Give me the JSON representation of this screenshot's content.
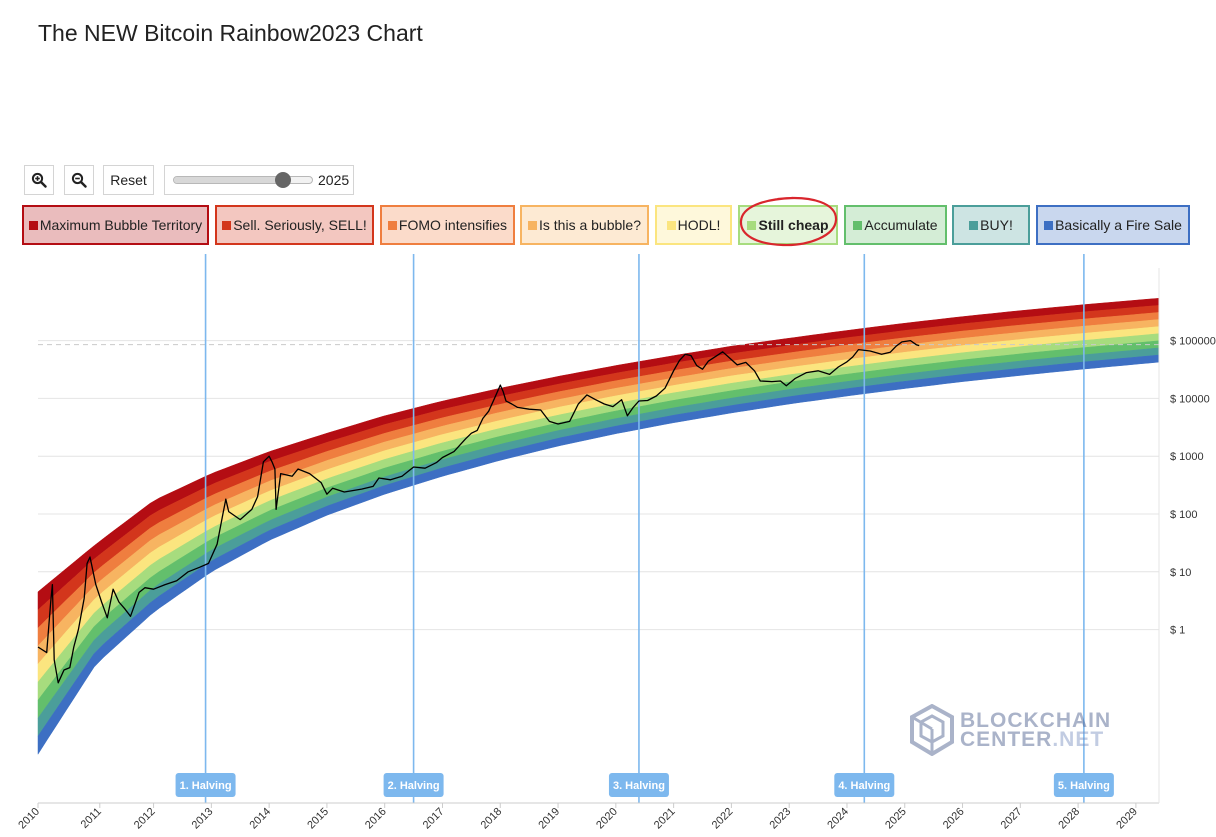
{
  "title": "The NEW Bitcoin Rainbow2023 Chart",
  "toolbar": {
    "zoom_in_icon": "zoom-in-icon",
    "zoom_out_icon": "zoom-out-icon",
    "reset_label": "Reset",
    "slider_value": "2025",
    "slider_min": 2010,
    "slider_max": 2029
  },
  "legend": [
    {
      "label": "Maximum Bubble Territory",
      "color": "#b40d13"
    },
    {
      "label": "Sell. Seriously, SELL!",
      "color": "#d3361c"
    },
    {
      "label": "FOMO intensifies",
      "color": "#ef7e3f"
    },
    {
      "label": "Is this a bubble?",
      "color": "#f7b461"
    },
    {
      "label": "HODL!",
      "color": "#fbe57f"
    },
    {
      "label": "Still cheap",
      "color": "#a7dc7e",
      "selected": true
    },
    {
      "label": "Accumulate",
      "color": "#63bf6c"
    },
    {
      "label": "BUY!",
      "color": "#4b9e9a"
    },
    {
      "label": "Basically a Fire Sale",
      "color": "#3d6fc3"
    }
  ],
  "annotation_color": "#d9262d",
  "watermark": {
    "line1": "BLOCKCHAIN",
    "line2a": "CENTER",
    "line2b": ".NET"
  },
  "chart_data": {
    "type": "line",
    "title": "The NEW Bitcoin Rainbow2023 Chart",
    "xlabel": "",
    "ylabel": "",
    "x_range": [
      2010,
      2029.4
    ],
    "y_scale": "log",
    "y_range": [
      0.001,
      4000000
    ],
    "x_ticks": [
      "2010",
      "2011",
      "2012",
      "2013",
      "2014",
      "2015",
      "2016",
      "2017",
      "2018",
      "2019",
      "2020",
      "2021",
      "2022",
      "2023",
      "2024",
      "2025",
      "2026",
      "2027",
      "2028",
      "2029"
    ],
    "y_ticks": [
      {
        "value": 1,
        "label": "$ 1"
      },
      {
        "value": 10,
        "label": "$ 10"
      },
      {
        "value": 100,
        "label": "$ 100"
      },
      {
        "value": 1000,
        "label": "$ 1000"
      },
      {
        "value": 10000,
        "label": "$ 10000"
      },
      {
        "value": 100000,
        "label": "$ 100000"
      }
    ],
    "reference_line": {
      "value": 85000
    },
    "grid": true,
    "bands": {
      "series_names": [
        "Maximum Bubble Territory",
        "Sell. Seriously, SELL!",
        "FOMO intensifies",
        "Is this a bubble?",
        "HODL!",
        "Still cheap",
        "Accumulate",
        "BUY!",
        "Basically a Fire Sale"
      ],
      "top_edge": [
        [
          2010,
          4.5
        ],
        [
          2011,
          30
        ],
        [
          2012,
          170
        ],
        [
          2013,
          500
        ],
        [
          2014,
          1200
        ],
        [
          2015,
          2500
        ],
        [
          2016,
          5000
        ],
        [
          2017,
          9000
        ],
        [
          2018,
          15000
        ],
        [
          2019,
          24000
        ],
        [
          2020,
          37000
        ],
        [
          2021,
          55000
        ],
        [
          2022,
          80000
        ],
        [
          2023,
          110000
        ],
        [
          2024,
          150000
        ],
        [
          2025,
          200000
        ],
        [
          2026,
          260000
        ],
        [
          2027,
          330000
        ],
        [
          2028,
          410000
        ],
        [
          2029,
          500000
        ],
        [
          2029.4,
          540000
        ]
      ],
      "bottom_edge": [
        [
          2010,
          0.007
        ],
        [
          2011,
          0.25
        ],
        [
          2012,
          2
        ],
        [
          2013,
          10
        ],
        [
          2014,
          35
        ],
        [
          2015,
          95
        ],
        [
          2016,
          220
        ],
        [
          2017,
          450
        ],
        [
          2018,
          850
        ],
        [
          2019,
          1500
        ],
        [
          2020,
          2450
        ],
        [
          2021,
          3800
        ],
        [
          2022,
          5600
        ],
        [
          2023,
          8000
        ],
        [
          2024,
          11000
        ],
        [
          2025,
          14800
        ],
        [
          2026,
          19500
        ],
        [
          2027,
          25000
        ],
        [
          2028,
          31500
        ],
        [
          2029,
          39000
        ],
        [
          2029.4,
          42500
        ]
      ]
    },
    "halvings": [
      {
        "x": 2012.9,
        "label": "1. Halving"
      },
      {
        "x": 2016.5,
        "label": "2. Halving"
      },
      {
        "x": 2020.4,
        "label": "3. Halving"
      },
      {
        "x": 2024.3,
        "label": "4. Halving"
      },
      {
        "x": 2028.1,
        "label": "5. Halving"
      }
    ],
    "series": [
      {
        "type": "line",
        "points": [
          [
            2010.0,
            0.5
          ],
          [
            2010.15,
            0.4
          ],
          [
            2010.22,
            3
          ],
          [
            2010.25,
            6
          ],
          [
            2010.28,
            0.3
          ],
          [
            2010.35,
            0.12
          ],
          [
            2010.45,
            0.2
          ],
          [
            2010.55,
            0.22
          ],
          [
            2010.62,
            0.5
          ],
          [
            2010.7,
            1
          ],
          [
            2010.8,
            3.5
          ],
          [
            2010.85,
            14
          ],
          [
            2010.9,
            18
          ],
          [
            2011.0,
            6
          ],
          [
            2011.1,
            3
          ],
          [
            2011.2,
            1.6
          ],
          [
            2011.3,
            5
          ],
          [
            2011.4,
            3
          ],
          [
            2011.5,
            2.3
          ],
          [
            2011.6,
            1.7
          ],
          [
            2011.75,
            4.4
          ],
          [
            2011.85,
            5.3
          ],
          [
            2012.0,
            5
          ],
          [
            2012.2,
            6
          ],
          [
            2012.4,
            7
          ],
          [
            2012.6,
            10
          ],
          [
            2012.8,
            12
          ],
          [
            2012.95,
            14
          ],
          [
            2013.1,
            30
          ],
          [
            2013.2,
            100
          ],
          [
            2013.25,
            180
          ],
          [
            2013.3,
            110
          ],
          [
            2013.5,
            80
          ],
          [
            2013.7,
            120
          ],
          [
            2013.8,
            200
          ],
          [
            2013.9,
            800
          ],
          [
            2014.0,
            1000
          ],
          [
            2014.05,
            800
          ],
          [
            2014.1,
            600
          ],
          [
            2014.12,
            120
          ],
          [
            2014.2,
            500
          ],
          [
            2014.4,
            450
          ],
          [
            2014.5,
            600
          ],
          [
            2014.7,
            500
          ],
          [
            2014.9,
            350
          ],
          [
            2015.0,
            220
          ],
          [
            2015.1,
            280
          ],
          [
            2015.3,
            240
          ],
          [
            2015.6,
            270
          ],
          [
            2015.8,
            300
          ],
          [
            2015.9,
            420
          ],
          [
            2016.1,
            390
          ],
          [
            2016.3,
            450
          ],
          [
            2016.5,
            650
          ],
          [
            2016.7,
            620
          ],
          [
            2016.9,
            780
          ],
          [
            2017.0,
            950
          ],
          [
            2017.2,
            1200
          ],
          [
            2017.4,
            2000
          ],
          [
            2017.5,
            2500
          ],
          [
            2017.6,
            2800
          ],
          [
            2017.7,
            4500
          ],
          [
            2017.8,
            6000
          ],
          [
            2017.9,
            10000
          ],
          [
            2018.0,
            17000
          ],
          [
            2018.05,
            13000
          ],
          [
            2018.1,
            9000
          ],
          [
            2018.2,
            8000
          ],
          [
            2018.3,
            7000
          ],
          [
            2018.5,
            6500
          ],
          [
            2018.7,
            6300
          ],
          [
            2018.85,
            4000
          ],
          [
            2019.0,
            3600
          ],
          [
            2019.2,
            4000
          ],
          [
            2019.35,
            8000
          ],
          [
            2019.5,
            11500
          ],
          [
            2019.65,
            9500
          ],
          [
            2019.8,
            8000
          ],
          [
            2019.95,
            7200
          ],
          [
            2020.1,
            9500
          ],
          [
            2020.2,
            5000
          ],
          [
            2020.3,
            7000
          ],
          [
            2020.4,
            9000
          ],
          [
            2020.55,
            9200
          ],
          [
            2020.7,
            11000
          ],
          [
            2020.85,
            15000
          ],
          [
            2021.0,
            30000
          ],
          [
            2021.1,
            45000
          ],
          [
            2021.2,
            58000
          ],
          [
            2021.3,
            55000
          ],
          [
            2021.4,
            37000
          ],
          [
            2021.5,
            32000
          ],
          [
            2021.6,
            44000
          ],
          [
            2021.75,
            55000
          ],
          [
            2021.85,
            64000
          ],
          [
            2022.0,
            47000
          ],
          [
            2022.1,
            38000
          ],
          [
            2022.25,
            42000
          ],
          [
            2022.4,
            30000
          ],
          [
            2022.5,
            20000
          ],
          [
            2022.7,
            19500
          ],
          [
            2022.85,
            20000
          ],
          [
            2022.95,
            16500
          ],
          [
            2023.1,
            22000
          ],
          [
            2023.3,
            28000
          ],
          [
            2023.5,
            30000
          ],
          [
            2023.7,
            26000
          ],
          [
            2023.85,
            35000
          ],
          [
            2024.0,
            43000
          ],
          [
            2024.1,
            52000
          ],
          [
            2024.2,
            70000
          ],
          [
            2024.4,
            66000
          ],
          [
            2024.6,
            58000
          ],
          [
            2024.75,
            63000
          ],
          [
            2024.85,
            80000
          ],
          [
            2024.95,
            95000
          ],
          [
            2025.1,
            100000
          ],
          [
            2025.2,
            85000
          ],
          [
            2025.25,
            82000
          ]
        ]
      }
    ]
  }
}
